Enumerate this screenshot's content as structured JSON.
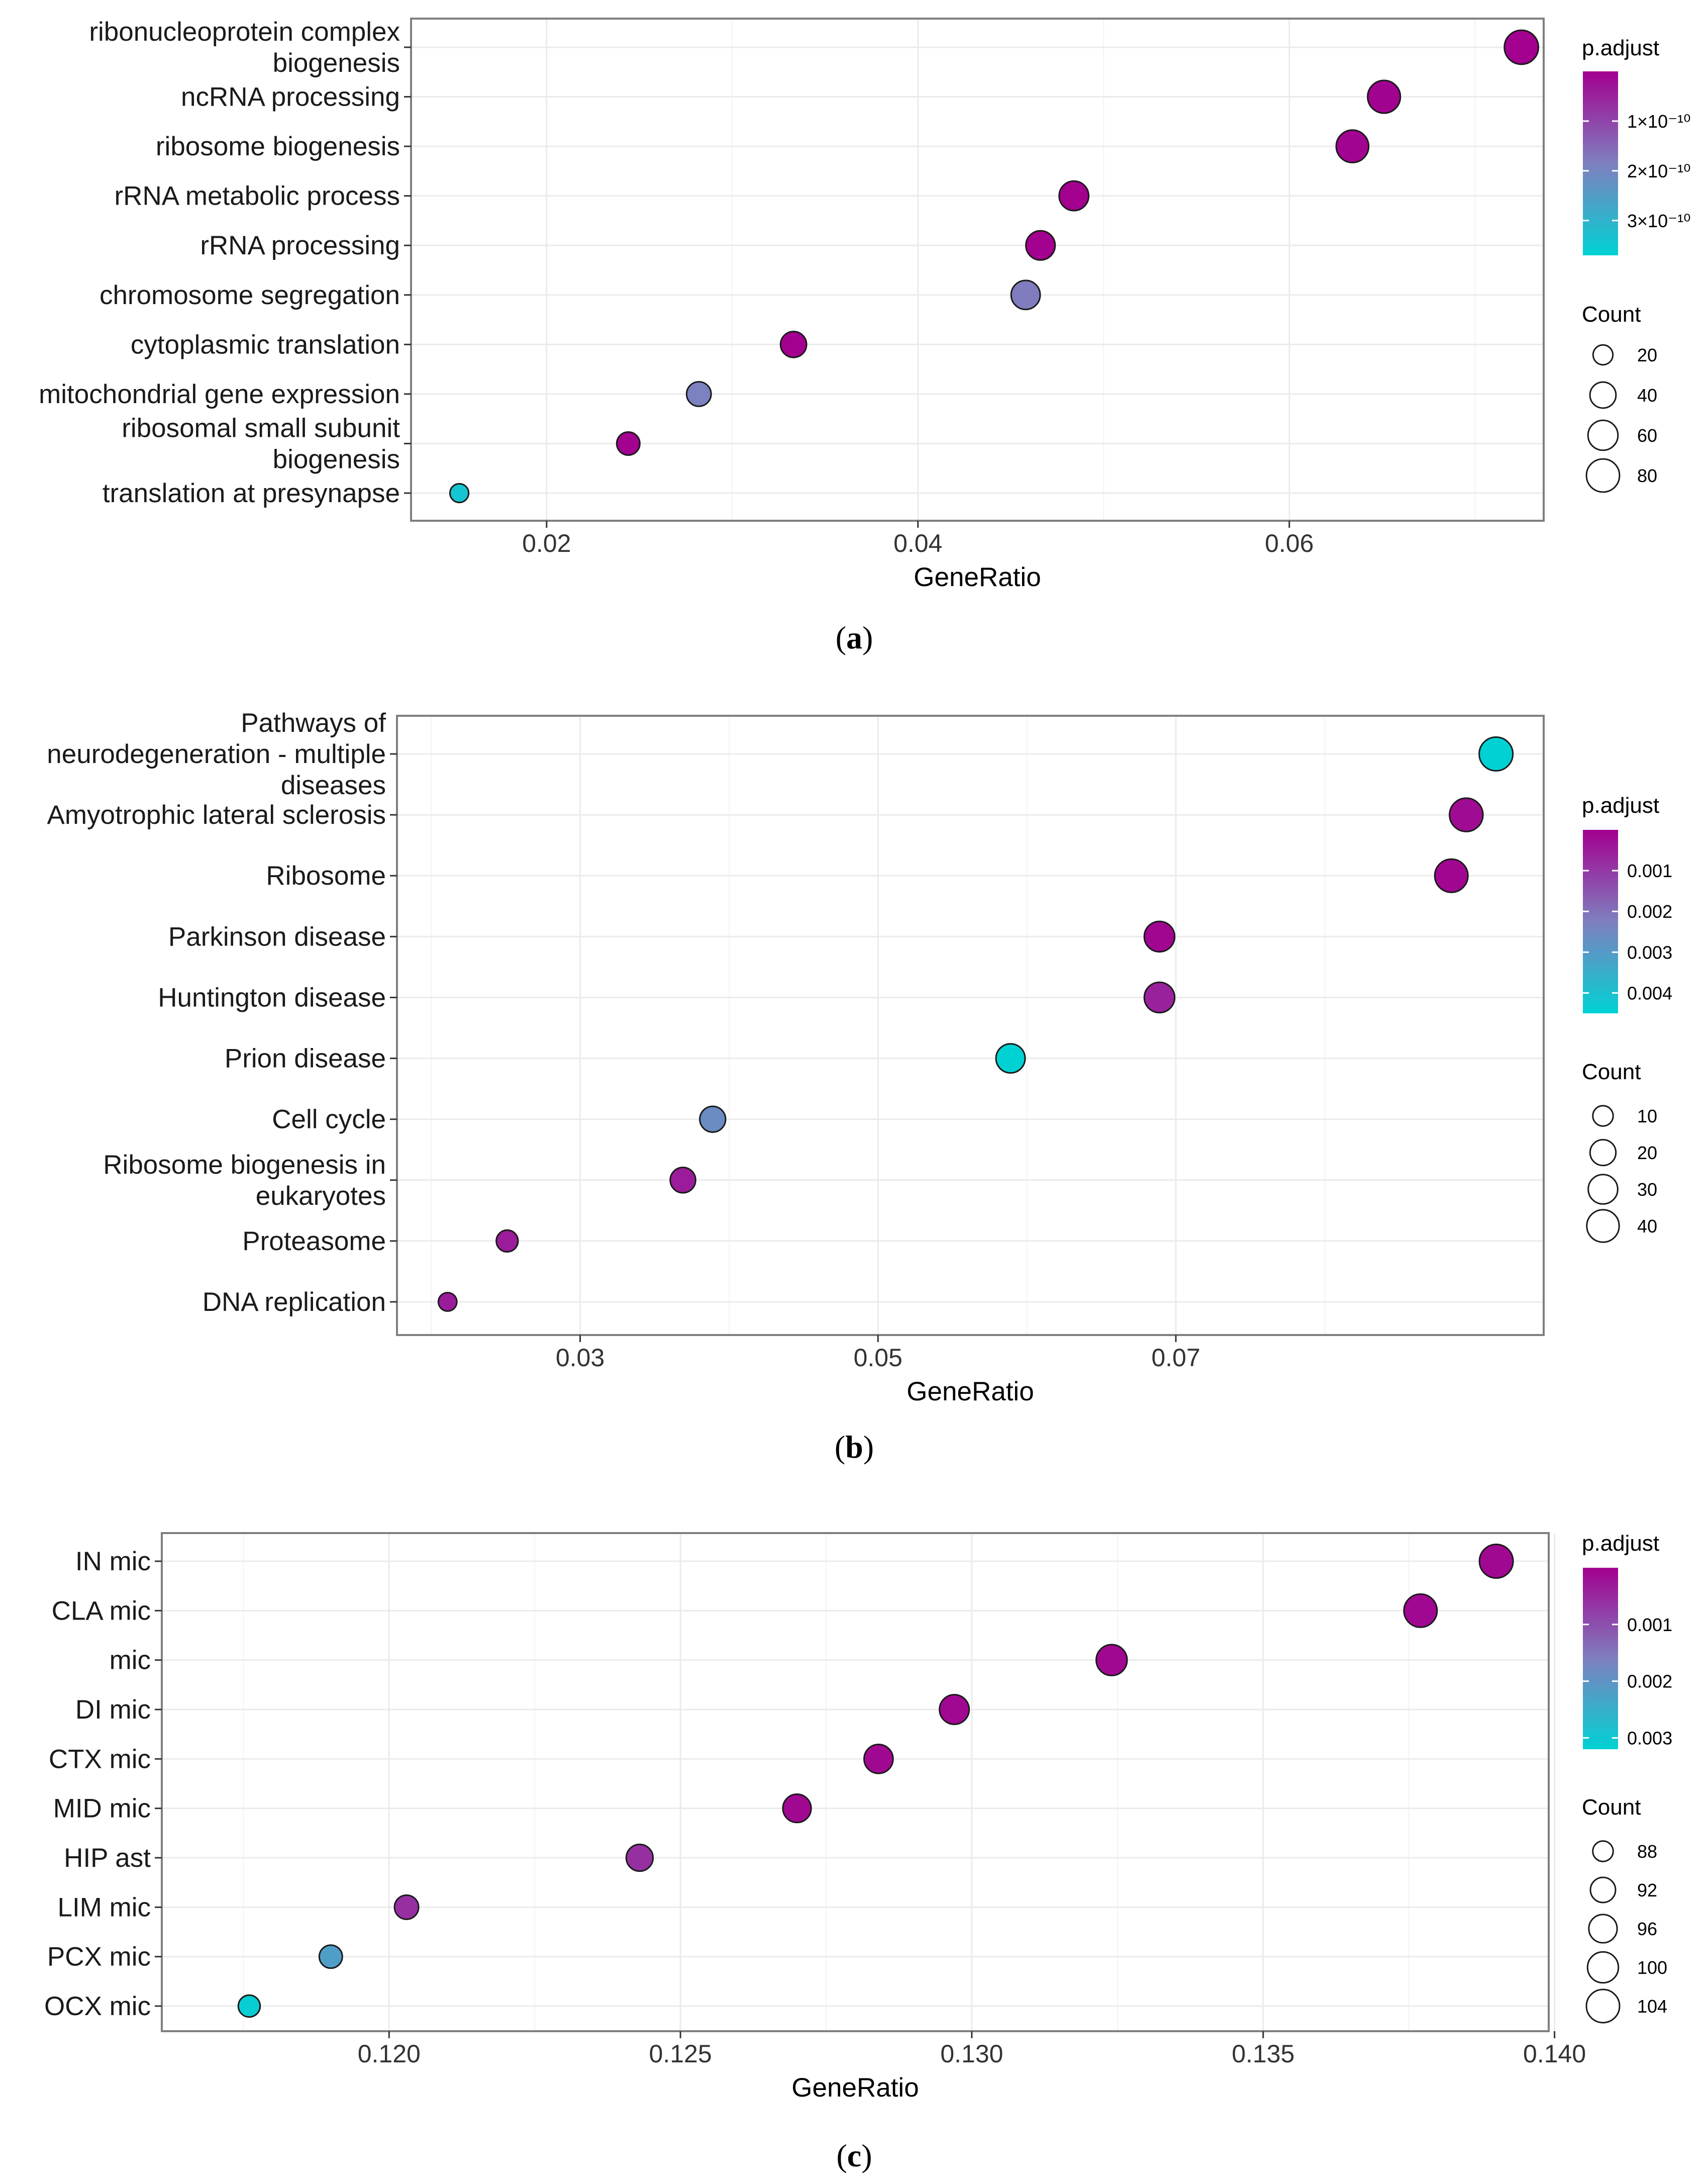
{
  "chart_data": [
    {
      "id": "a",
      "type": "scatter",
      "caption_letter": "a",
      "xlabel": "GeneRatio",
      "ylabel": "",
      "xlim": [
        0.0127,
        0.0737
      ],
      "xticks": [
        0.02,
        0.04,
        0.06
      ],
      "xtick_labels": [
        "0.02",
        "0.04",
        "0.06"
      ],
      "categories": [
        "ribonucleoprotein complex biogenesis",
        "ncRNA processing",
        "ribosome biogenesis",
        "rRNA metabolic process",
        "rRNA processing",
        "chromosome segregation",
        "cytoplasmic translation",
        "mitochondrial gene expression",
        "ribosomal small subunit biogenesis",
        "translation at presynapse"
      ],
      "category_label_lines": [
        [
          "ribonucleoprotein complex",
          "biogenesis"
        ],
        [
          "ncRNA processing"
        ],
        [
          "ribosome biogenesis"
        ],
        [
          "rRNA metabolic process"
        ],
        [
          "rRNA processing"
        ],
        [
          "chromosome segregation"
        ],
        [
          "cytoplasmic translation"
        ],
        [
          "mitochondrial gene expression"
        ],
        [
          "ribosomal small subunit",
          "biogenesis"
        ],
        [
          "translation at presynapse"
        ]
      ],
      "gene_ratio": [
        0.0725,
        0.0651,
        0.0634,
        0.0484,
        0.0466,
        0.0458,
        0.0333,
        0.0282,
        0.0244,
        0.0153
      ],
      "p_adjust": [
        1e-14,
        3e-12,
        5e-12,
        1e-13,
        2e-13,
        1.8e-10,
        1e-14,
        1.9e-10,
        2e-12,
        3.4e-10
      ],
      "count": [
        87,
        78,
        76,
        58,
        56,
        55,
        40,
        34,
        29,
        18
      ],
      "p_adjust_range": [
        0,
        3.7e-10
      ],
      "legend_color_title": "p.adjust",
      "legend_color_values": [
        1e-10,
        2e-10,
        3e-10
      ],
      "legend_color_labels": [
        "1×10⁻¹⁰",
        "2×10⁻¹⁰",
        "3×10⁻¹⁰"
      ],
      "legend_size_title": "Count",
      "legend_size_values": [
        20,
        40,
        60,
        80
      ],
      "legend_size_labels": [
        "20",
        "40",
        "60",
        "80"
      ],
      "size_range": [
        14,
        88
      ],
      "legend_placement": "right",
      "grid": true
    },
    {
      "id": "b",
      "type": "scatter",
      "caption_letter": "b",
      "xlabel": "GeneRatio",
      "ylabel": "",
      "xlim": [
        0.0177,
        0.0947
      ],
      "xticks": [
        0.03,
        0.05,
        0.07
      ],
      "xtick_labels": [
        "0.03",
        "0.05",
        "0.07"
      ],
      "categories": [
        "Pathways of neurodegeneration - multiple diseases",
        "Amyotrophic lateral sclerosis",
        "Ribosome",
        "Parkinson disease",
        "Huntington disease",
        "Prion disease",
        "Cell cycle",
        "Ribosome biogenesis in eukaryotes",
        "Proteasome",
        "DNA replication"
      ],
      "category_label_lines": [
        [
          "Pathways of",
          "neurodegeneration - multiple",
          "diseases"
        ],
        [
          "Amyotrophic lateral sclerosis"
        ],
        [
          "Ribosome"
        ],
        [
          "Parkinson disease"
        ],
        [
          "Huntington disease"
        ],
        [
          "Prion disease"
        ],
        [
          "Cell cycle"
        ],
        [
          "Ribosome biogenesis in",
          "eukaryotes"
        ],
        [
          "Proteasome"
        ],
        [
          "DNA replication"
        ]
      ],
      "gene_ratio": [
        0.0915,
        0.0895,
        0.0885,
        0.0689,
        0.0689,
        0.0589,
        0.0389,
        0.0369,
        0.0251,
        0.0211
      ],
      "p_adjust": [
        0.0045,
        0.0002,
        0.0001,
        0.0001,
        0.0006,
        0.0045,
        0.0026,
        0.0005,
        0.0005,
        0.0005
      ],
      "count": [
        45,
        44,
        43,
        33,
        33,
        29,
        20,
        19,
        12,
        8
      ],
      "p_adjust_range": [
        0,
        0.0045
      ],
      "legend_color_title": "p.adjust",
      "legend_color_values": [
        0.001,
        0.002,
        0.003,
        0.004
      ],
      "legend_color_labels": [
        "0.001",
        "0.002",
        "0.003",
        "0.004"
      ],
      "legend_size_title": "Count",
      "legend_size_values": [
        10,
        20,
        30,
        40
      ],
      "legend_size_labels": [
        "10",
        "20",
        "30",
        "40"
      ],
      "size_range": [
        6,
        47
      ],
      "legend_placement": "right",
      "grid": true
    },
    {
      "id": "c",
      "type": "scatter",
      "caption_letter": "c",
      "xlabel": "GeneRatio",
      "ylabel": "",
      "xlim": [
        0.1161,
        0.1399
      ],
      "xticks": [
        0.12,
        0.125,
        0.13,
        0.135,
        0.14
      ],
      "xtick_labels": [
        "0.120",
        "0.125",
        "0.130",
        "0.135",
        "0.140"
      ],
      "categories": [
        "IN mic",
        "CLA mic",
        "mic",
        "DI mic",
        "CTX mic",
        "MID mic",
        "HIP ast",
        "LIM mic",
        "PCX mic",
        "OCX mic"
      ],
      "category_label_lines": [
        [
          "IN mic"
        ],
        [
          "CLA mic"
        ],
        [
          "mic"
        ],
        [
          "DI mic"
        ],
        [
          "CTX mic"
        ],
        [
          "MID mic"
        ],
        [
          "HIP ast"
        ],
        [
          "LIM mic"
        ],
        [
          "PCX mic"
        ],
        [
          "OCX mic"
        ]
      ],
      "gene_ratio": [
        0.139,
        0.1377,
        0.1324,
        0.1297,
        0.1284,
        0.127,
        0.1243,
        0.1203,
        0.119,
        0.1176
      ],
      "p_adjust": [
        0.0001,
        0.0001,
        0.0001,
        0.0001,
        0.0001,
        0.0001,
        0.0006,
        0.0006,
        0.0022,
        0.0031
      ],
      "count": [
        105,
        104,
        100,
        98,
        97,
        96,
        94,
        91,
        90,
        89
      ],
      "p_adjust_range": [
        0,
        0.0032
      ],
      "legend_color_title": "p.adjust",
      "legend_color_values": [
        0.001,
        0.002,
        0.003
      ],
      "legend_color_labels": [
        "0.001",
        "0.002",
        "0.003"
      ],
      "legend_size_title": "Count",
      "legend_size_values": [
        88,
        92,
        96,
        100,
        104
      ],
      "legend_size_labels": [
        "88",
        "92",
        "96",
        "100",
        "104"
      ],
      "size_range": [
        86,
        106
      ],
      "legend_placement": "right",
      "grid": true
    }
  ],
  "colors": {
    "low_padjust": "#a3008f",
    "mid_padjust": "#7f7fbf",
    "high_padjust": "#00d2d4",
    "gridline": "#ebebeb",
    "panel_border": "#7f7f7f",
    "text": "#000000",
    "axis_text": "#1a1a1a"
  }
}
